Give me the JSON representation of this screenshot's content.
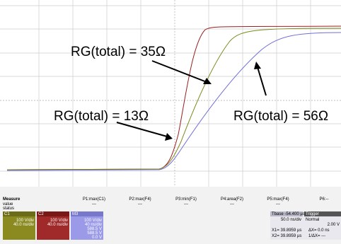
{
  "annotations": [
    "RG(total) = 35Ω",
    "RG(total) = 13Ω",
    "RG(total) = 56Ω"
  ],
  "measure": {
    "title": "Measure",
    "rows": [
      "value",
      "status"
    ],
    "params": [
      {
        "name": "P1:max(C1)",
        "value": "---"
      },
      {
        "name": "P2:max(F4)",
        "value": "---"
      },
      {
        "name": "P3:min(F1)",
        "value": "---"
      },
      {
        "name": "P4:area(F2)",
        "value": "---"
      },
      {
        "name": "P5:max(F4)",
        "value": "---"
      },
      {
        "name": "P6:--",
        "value": ""
      }
    ]
  },
  "channels": [
    {
      "name": "C1",
      "scale": "100 V/div",
      "offset": "40.0 ns/div"
    },
    {
      "name": "C2",
      "scale": "100 V/div",
      "offset": "40.0 ns/div"
    },
    {
      "name": "M3",
      "scale": "100 V/div",
      "offset": "40 ns/div",
      "lines": [
        "588.5 V",
        "588.5 V",
        "0.0 V"
      ]
    }
  ],
  "timebase": {
    "tbase": "Tbase -54.400 µs",
    "trigger": "Trigger",
    "rate": "50.0 ns/div",
    "mode": "Normal",
    "level": "2.00 V",
    "x1": "X1= 39.8959 µs",
    "dx": "ΔX= 0.0 ns",
    "x2": "X2= 39.8959 µs",
    "inv": "1/ΔX= ---"
  }
}
